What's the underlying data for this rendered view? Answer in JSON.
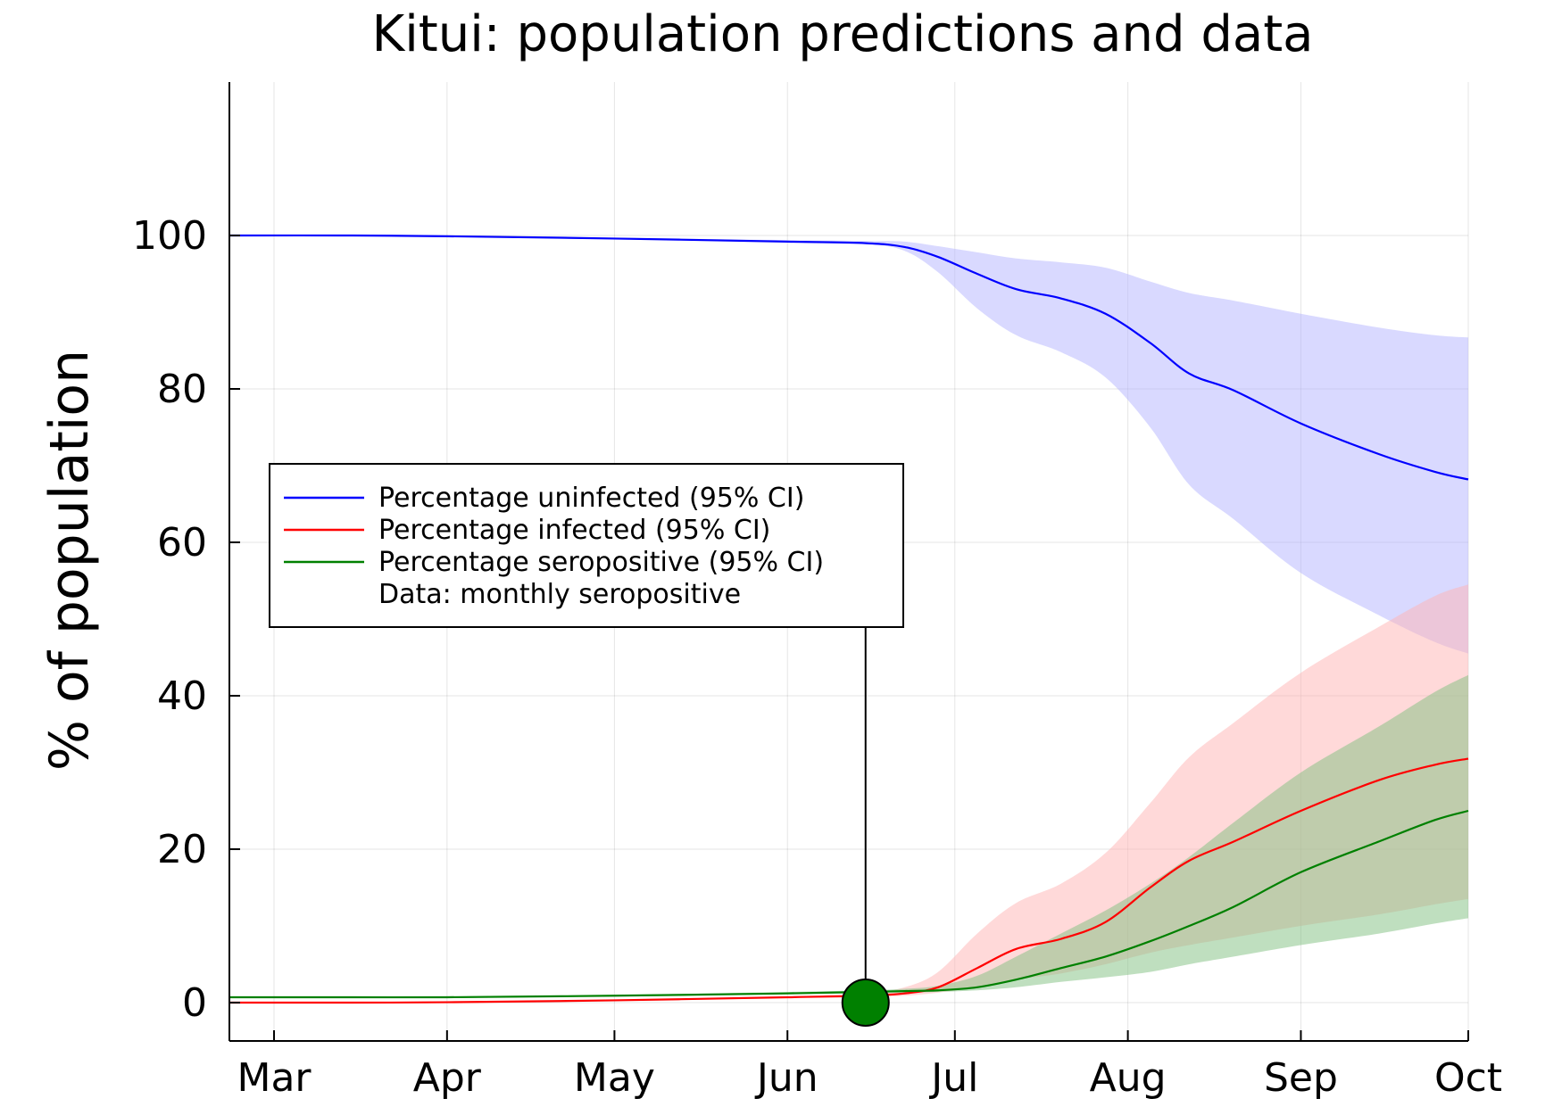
{
  "chart_data": {
    "type": "line",
    "title": "Kitui: population predictions and data",
    "xlabel": "",
    "ylabel": "% of population",
    "x_axis_type": "date",
    "xlim": [
      "2020-02-22",
      "2020-10-01"
    ],
    "ylim": [
      -5,
      120
    ],
    "x_ticks": [
      {
        "date": "2020-03-01",
        "label": "Mar"
      },
      {
        "date": "2020-04-01",
        "label": "Apr"
      },
      {
        "date": "2020-05-01",
        "label": "May"
      },
      {
        "date": "2020-06-01",
        "label": "Jun"
      },
      {
        "date": "2020-07-01",
        "label": "Jul"
      },
      {
        "date": "2020-08-01",
        "label": "Aug"
      },
      {
        "date": "2020-09-01",
        "label": "Sep"
      },
      {
        "date": "2020-10-01",
        "label": "Oct"
      }
    ],
    "y_ticks": [
      0,
      20,
      40,
      60,
      80,
      100
    ],
    "grid": true,
    "legend_position": "center-left",
    "series": [
      {
        "name": "Percentage uninfected (95% CI)",
        "color": "#0000ff",
        "band_color": "#b3b3ff",
        "points": [
          [
            "2020-02-22",
            100.0,
            100.0,
            100.0
          ],
          [
            "2020-03-15",
            100.0,
            100.0,
            100.0
          ],
          [
            "2020-04-01",
            99.9,
            99.9,
            99.9
          ],
          [
            "2020-05-01",
            99.6,
            99.6,
            99.7
          ],
          [
            "2020-06-01",
            99.2,
            99.1,
            99.4
          ],
          [
            "2020-06-15",
            99.0,
            98.9,
            99.3
          ],
          [
            "2020-06-22",
            98.5,
            98.0,
            99.2
          ],
          [
            "2020-06-28",
            97.2,
            95.2,
            98.6
          ],
          [
            "2020-07-05",
            95.0,
            90.5,
            97.8
          ],
          [
            "2020-07-12",
            93.0,
            87.0,
            97.0
          ],
          [
            "2020-07-20",
            91.8,
            84.8,
            96.5
          ],
          [
            "2020-07-28",
            89.8,
            81.5,
            95.8
          ],
          [
            "2020-08-05",
            86.0,
            75.0,
            94.0
          ],
          [
            "2020-08-12",
            82.0,
            67.5,
            92.5
          ],
          [
            "2020-08-20",
            79.8,
            63.0,
            91.5
          ],
          [
            "2020-09-01",
            75.5,
            56.0,
            89.8
          ],
          [
            "2020-09-15",
            71.5,
            50.5,
            88.0
          ],
          [
            "2020-09-25",
            69.2,
            47.0,
            87.0
          ],
          [
            "2020-10-01",
            68.2,
            45.5,
            86.7
          ]
        ]
      },
      {
        "name": "Percentage infected (95% CI)",
        "color": "#ff0000",
        "band_color": "#ffb3b3",
        "points": [
          [
            "2020-02-22",
            0.0,
            0.0,
            0.0
          ],
          [
            "2020-03-15",
            0.0,
            0.0,
            0.0
          ],
          [
            "2020-04-01",
            0.05,
            0.05,
            0.05
          ],
          [
            "2020-05-01",
            0.3,
            0.3,
            0.3
          ],
          [
            "2020-06-01",
            0.7,
            0.6,
            0.8
          ],
          [
            "2020-06-15",
            0.9,
            0.7,
            1.2
          ],
          [
            "2020-06-22",
            1.2,
            0.9,
            2.0
          ],
          [
            "2020-06-28",
            2.0,
            1.3,
            4.0
          ],
          [
            "2020-07-05",
            4.5,
            2.0,
            9.0
          ],
          [
            "2020-07-12",
            7.0,
            3.0,
            13.0
          ],
          [
            "2020-07-20",
            8.3,
            3.8,
            15.5
          ],
          [
            "2020-07-28",
            10.5,
            5.0,
            19.5
          ],
          [
            "2020-08-05",
            15.0,
            6.5,
            26.0
          ],
          [
            "2020-08-12",
            18.5,
            7.5,
            32.0
          ],
          [
            "2020-08-20",
            21.0,
            8.5,
            36.5
          ],
          [
            "2020-09-01",
            25.0,
            10.0,
            43.0
          ],
          [
            "2020-09-15",
            29.0,
            11.5,
            49.0
          ],
          [
            "2020-09-25",
            31.0,
            12.8,
            53.0
          ],
          [
            "2020-10-01",
            31.8,
            13.5,
            54.5
          ]
        ]
      },
      {
        "name": "Percentage seropositive (95% CI)",
        "color": "#008000",
        "band_color": "#7fbf7f",
        "points": [
          [
            "2020-02-22",
            0.7,
            0.6,
            0.8
          ],
          [
            "2020-03-15",
            0.7,
            0.6,
            0.8
          ],
          [
            "2020-04-01",
            0.7,
            0.6,
            0.8
          ],
          [
            "2020-05-01",
            0.9,
            0.8,
            1.0
          ],
          [
            "2020-06-01",
            1.2,
            1.1,
            1.4
          ],
          [
            "2020-06-15",
            1.4,
            1.2,
            1.6
          ],
          [
            "2020-06-22",
            1.5,
            1.3,
            1.8
          ],
          [
            "2020-06-28",
            1.6,
            1.4,
            2.2
          ],
          [
            "2020-07-05",
            2.0,
            1.6,
            3.5
          ],
          [
            "2020-07-12",
            3.0,
            2.0,
            6.0
          ],
          [
            "2020-07-20",
            4.5,
            2.7,
            9.0
          ],
          [
            "2020-07-28",
            6.0,
            3.3,
            12.0
          ],
          [
            "2020-08-05",
            8.0,
            4.0,
            15.5
          ],
          [
            "2020-08-12",
            10.0,
            5.0,
            19.0
          ],
          [
            "2020-08-20",
            12.5,
            6.0,
            23.5
          ],
          [
            "2020-09-01",
            17.0,
            7.5,
            30.0
          ],
          [
            "2020-09-15",
            21.0,
            9.0,
            36.0
          ],
          [
            "2020-09-25",
            23.8,
            10.3,
            40.5
          ],
          [
            "2020-10-01",
            25.0,
            11.0,
            42.7
          ]
        ]
      },
      {
        "name": "Data: monthly seropositive",
        "type": "scatter",
        "color": "#008000",
        "points": [
          {
            "date": "2020-06-15",
            "value": 0.0,
            "upper_error": 49.5,
            "lower_error": 0
          }
        ]
      }
    ]
  }
}
